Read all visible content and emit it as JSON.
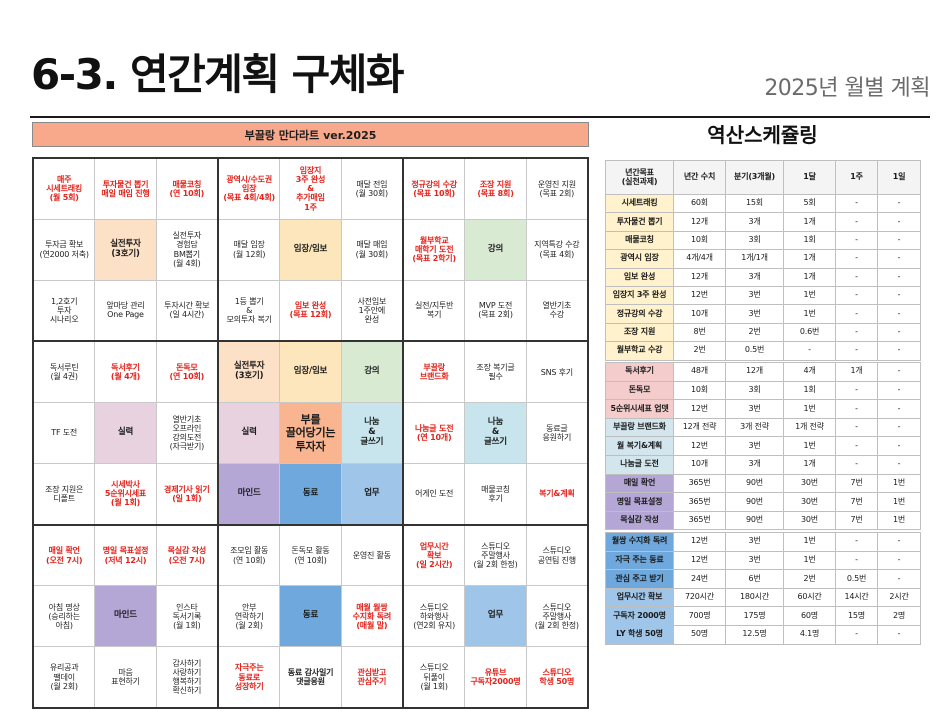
{
  "title": "6-3. 연간계획 구체화",
  "subtitle": "2025년 월별 계획",
  "mandalart": {
    "title": "부끌랑 만다라트 ver.2025",
    "blocks": [
      [
        "매주\n시세트래킹\n(월 5회)",
        "투자물건 뽑기\n매일 매임 진행",
        "매물코칭\n(연 10회)",
        "투자금 확보\n(연2000 저축)",
        "실전투자\n(3호기)",
        "실전투자\n경험담\nBM뽑기\n(월 4회)",
        "1,2호기\n투자\n시나리오",
        "앞마당 관리\nOne Page",
        "투자시간 확보\n(일 4시간)"
      ],
      [
        "광역시/수도권\n임장\n(목표 4회/4회)",
        "임장지\n3주 완성\n&\n추가매임\n1주",
        "매달 전임\n(월 30회)",
        "매달 임장\n(월 12회)",
        "임장/임보",
        "매달 매임\n(월 30회)",
        "1등 뽑기\n&\n모의투자 복기",
        "임보 완성\n(목표 12회)",
        "사전임보\n1주안에\n완성"
      ],
      [
        "정규강의 수강\n(목표 10회)",
        "조장 지원\n(목표 8회)",
        "운영진 지원\n(목표 2회)",
        "월부학교\n매학기 도전\n(목표 2학기)",
        "강의",
        "지역특강 수강\n(목표 4회)",
        "실전/지투반\n복기",
        "MVP 도전\n(목표 2회)",
        "열반기초\n수강"
      ],
      [
        "독서루틴\n(월 4권)",
        "독서후기\n(월 4개)",
        "돈독모\n(연 10회)",
        "TF 도전",
        "실력",
        "열반기초\n오프라인\n강의도전\n(자극받기)",
        "조장 지원은\n디폴트",
        "시세박사\n5순위시세표\n(월 1회)",
        "경제기사 읽기\n(일 1회)"
      ],
      [
        "실전투자\n(3호기)",
        "임장/임보",
        "강의",
        "실력",
        "부를\n끌어당기는\n투자자",
        "나눔\n&\n글쓰기",
        "마인드",
        "동료",
        "업무"
      ],
      [
        "부끌랑\n브랜드화",
        "조장 복기글\n필수",
        "SNS 후기",
        "나눔글 도전\n(연 10개)",
        "나눔\n&\n글쓰기",
        "동료글\n응원하기",
        "어게인 도전",
        "매물코칭\n후기",
        "복기&계획"
      ],
      [
        "매일 확언\n(오전 7시)",
        "명일 목표설정\n(저녁 12시)",
        "목실감 작성\n(오전 7시)",
        "아침 명상\n(승리하는\n아침)",
        "마인드",
        "인스타\n독서기록\n(월 1회)",
        "유리공과\n팰데이\n(월 2회)",
        "마음\n표현하기",
        "감사하기\n사랑하기\n행복하기\n확신하기"
      ],
      [
        "조모임 활동\n(연 10회)",
        "돈독모 활동\n(연 10회)",
        "운영진 활동",
        "안부\n연락하기\n(월 2회)",
        "동료",
        "매월 월쌍\n수지화 독려\n(매월 말)",
        "자극주는\n동료로\n성장하기",
        "동료 감사일기\n댓글응원",
        "관심받고\n관심주기"
      ],
      [
        "업무시간\n확보\n(일 2시간)",
        "스튜디오\n주말행사\n(월 2회 한정)",
        "스튜디오\n공연팀 진행",
        "스튜디오\n하와행사\n(연2회 유지)",
        "업무",
        "스튜디오\n주말행사\n(월 2회 한정)",
        "스튜디오\n뒤풀이\n(월 1회)",
        "유튜브\n구독자2000명",
        "스튜디오\n학생 50명"
      ]
    ]
  },
  "schedule": {
    "title": "역산스케쥴링",
    "headers": [
      "년간목표\n(실천과제)",
      "년간 수치",
      "분기(3개월)",
      "1달",
      "1주",
      "1일"
    ],
    "rows": [
      [
        "시세트래킹",
        "60회",
        "15회",
        "5회",
        "-",
        "-"
      ],
      [
        "투자물건 뽑기",
        "12개",
        "3개",
        "1개",
        "-",
        "-"
      ],
      [
        "매물코칭",
        "10회",
        "3회",
        "1회",
        "-",
        "-"
      ],
      [
        "광역시 임장",
        "4개/4개",
        "1개/1개",
        "1개",
        "-",
        "-"
      ],
      [
        "임보 완성",
        "12개",
        "3개",
        "1개",
        "-",
        "-"
      ],
      [
        "임장지 3주 완성",
        "12번",
        "3번",
        "1번",
        "-",
        "-"
      ],
      [
        "정규강의 수강",
        "10개",
        "3번",
        "1번",
        "-",
        "-"
      ],
      [
        "조장 지원",
        "8번",
        "2번",
        "0.6번",
        "-",
        "-"
      ],
      [
        "월부학교 수강",
        "2번",
        "0.5번",
        "-",
        "-",
        "-"
      ],
      [
        "독서후기",
        "48개",
        "12개",
        "4개",
        "1개",
        "-"
      ],
      [
        "돈독모",
        "10회",
        "3회",
        "1회",
        "-",
        "-"
      ],
      [
        "5순위시세표 업뎃",
        "12번",
        "3번",
        "1번",
        "-",
        "-"
      ],
      [
        "부끌랑 브랜드화",
        "12개 전략",
        "3개 전략",
        "1개 전략",
        "-",
        "-"
      ],
      [
        "월 복기&계획",
        "12번",
        "3번",
        "1번",
        "-",
        "-"
      ],
      [
        "나눔글 도전",
        "10개",
        "3개",
        "1개",
        "-",
        "-"
      ],
      [
        "매일 확언",
        "365번",
        "90번",
        "30번",
        "7번",
        "1번"
      ],
      [
        "명일 목표설정",
        "365번",
        "90번",
        "30번",
        "7번",
        "1번"
      ],
      [
        "목실감 작성",
        "365번",
        "90번",
        "30번",
        "7번",
        "1번"
      ],
      [
        "월쌍 수지화 독려",
        "12번",
        "3번",
        "1번",
        "-",
        "-"
      ],
      [
        "자극 주는 동료",
        "12번",
        "3번",
        "1번",
        "-",
        "-"
      ],
      [
        "관심 주고 받기",
        "24번",
        "6번",
        "2번",
        "0.5번",
        "-"
      ],
      [
        "업무시간 확보",
        "720시간",
        "180시간",
        "60시간",
        "14시간",
        "2시간"
      ],
      [
        "구독자 2000명",
        "700명",
        "175명",
        "60명",
        "15명",
        "2명"
      ],
      [
        "LY 학생 50명",
        "50명",
        "12.5명",
        "4.1명",
        "-",
        "-"
      ]
    ]
  }
}
